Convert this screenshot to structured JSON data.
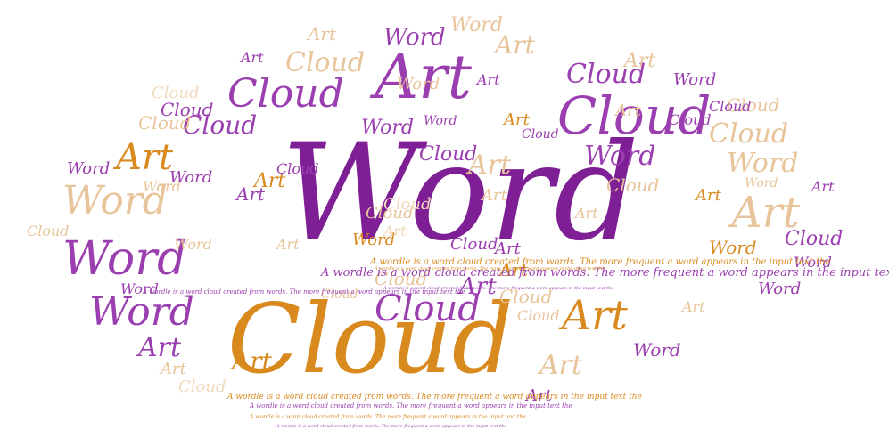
{
  "wordcloud": {
    "colors": {
      "purple": "#7e1f96",
      "violet": "#9b3fb0",
      "orange": "#d98a1f",
      "tan": "#e8c49a",
      "lightTan": "#f0d9bd"
    },
    "sentence": "A wordle is a word cloud created from words. The more frequent a word appears in the input text the",
    "words": [
      {
        "text": "Word",
        "color": "purple"
      },
      {
        "text": "Cloud",
        "color": "orange"
      },
      {
        "text": "Art",
        "color": "violet"
      },
      {
        "text": "Cloud",
        "color": "violet"
      },
      {
        "text": "Cloud",
        "color": "violet"
      },
      {
        "text": "Word",
        "color": "violet"
      },
      {
        "text": "Word",
        "color": "violet"
      },
      {
        "text": "Word",
        "color": "tan"
      },
      {
        "text": "Art",
        "color": "tan"
      },
      {
        "text": "Art",
        "color": "orange"
      },
      {
        "text": "Art",
        "color": "orange"
      },
      {
        "text": "Cloud",
        "color": "violet"
      },
      {
        "text": "Word",
        "color": "violet"
      },
      {
        "text": "Cloud",
        "color": "tan"
      },
      {
        "text": "Cloud",
        "color": "violet"
      },
      {
        "text": "Cloud",
        "color": "tan"
      },
      {
        "text": "Art",
        "color": "tan"
      },
      {
        "text": "Word",
        "color": "tan"
      },
      {
        "text": "Art",
        "color": "tan"
      },
      {
        "text": "Art",
        "color": "violet"
      },
      {
        "text": "Art",
        "color": "tan"
      },
      {
        "text": "Cloud",
        "color": "violet"
      },
      {
        "text": "Art",
        "color": "orange"
      },
      {
        "text": "Art",
        "color": "violet"
      },
      {
        "text": "Word",
        "color": "violet"
      },
      {
        "text": "Word",
        "color": "tan"
      },
      {
        "text": "Cloud",
        "color": "violet"
      },
      {
        "text": "Word",
        "color": "violet"
      },
      {
        "text": "Cloud",
        "color": "violet"
      },
      {
        "text": "Cloud",
        "color": "tan"
      },
      {
        "text": "Cloud",
        "color": "tan"
      },
      {
        "text": "Cloud",
        "color": "tan"
      },
      {
        "text": "Art",
        "color": "tan"
      },
      {
        "text": "Word",
        "color": "violet"
      },
      {
        "text": "Word",
        "color": "orange"
      },
      {
        "text": "Art",
        "color": "orange"
      },
      {
        "text": "Word",
        "color": "violet"
      },
      {
        "text": "Word",
        "color": "orange"
      },
      {
        "text": "Art",
        "color": "orange"
      },
      {
        "text": "Word",
        "color": "violet"
      },
      {
        "text": "Cloud",
        "color": "violet"
      },
      {
        "text": "Cloud",
        "color": "tan"
      },
      {
        "text": "Art",
        "color": "violet"
      },
      {
        "text": "Word",
        "color": "violet"
      },
      {
        "text": "Cloud",
        "color": "violet"
      },
      {
        "text": "Art",
        "color": "violet"
      },
      {
        "text": "Art",
        "color": "orange"
      },
      {
        "text": "Word",
        "color": "tan"
      },
      {
        "text": "Art",
        "color": "tan"
      },
      {
        "text": "Cloud",
        "color": "lightTan"
      },
      {
        "text": "Art",
        "color": "violet"
      },
      {
        "text": "Art",
        "color": "tan"
      },
      {
        "text": "Cloud",
        "color": "tan"
      },
      {
        "text": "Art",
        "color": "violet"
      },
      {
        "text": "Word",
        "color": "violet"
      },
      {
        "text": "Cloud",
        "color": "violet"
      },
      {
        "text": "Art",
        "color": "tan"
      },
      {
        "text": "Word",
        "color": "violet"
      },
      {
        "text": "Cloud",
        "color": "lightTan"
      },
      {
        "text": "Art",
        "color": "tan"
      },
      {
        "text": "Word",
        "color": "tan"
      },
      {
        "text": "Cloud",
        "color": "tan"
      },
      {
        "text": "Word",
        "color": "tan"
      },
      {
        "text": "Art",
        "color": "lightTan"
      },
      {
        "text": "Cloud",
        "color": "violet"
      },
      {
        "text": "Art",
        "color": "violet"
      },
      {
        "text": "Cloud",
        "color": "tan"
      },
      {
        "text": "Cloud",
        "color": "lightTan"
      },
      {
        "text": "Art",
        "color": "tan"
      },
      {
        "text": "Word",
        "color": "violet"
      },
      {
        "text": "Art",
        "color": "orange"
      },
      {
        "text": "Cloud",
        "color": "violet"
      },
      {
        "text": "Art",
        "color": "violet"
      },
      {
        "text": "Cloud",
        "color": "tan"
      },
      {
        "text": "Cloud",
        "color": "violet"
      },
      {
        "text": "Art",
        "color": "tan"
      },
      {
        "text": "Word",
        "color": "violet"
      },
      {
        "text": "Cloud",
        "color": "tan"
      },
      {
        "text": "Art",
        "color": "tan"
      },
      {
        "text": "Word",
        "color": "tan"
      }
    ]
  }
}
